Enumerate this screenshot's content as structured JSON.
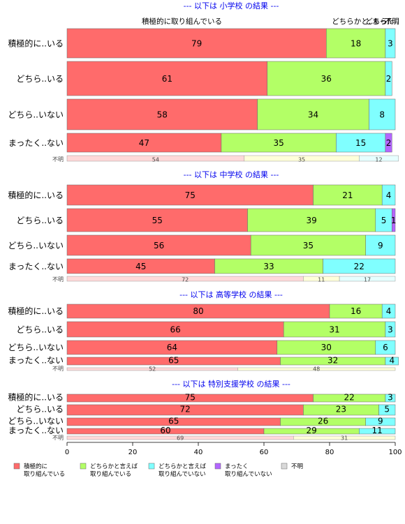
{
  "chart_data": {
    "type": "bar",
    "orientation": "horizontal",
    "stacked": true,
    "xlim": [
      0,
      100
    ],
    "xticks": [
      0,
      20,
      40,
      60,
      80,
      100
    ],
    "colors": [
      "#ff6b6b",
      "#b3ff66",
      "#80ffff",
      "#b366ff",
      "#d9d9d9"
    ],
    "legend": {
      "placement": "bottom",
      "items": [
        {
          "label_lines": [
            "積極的に",
            "取り組んでいる"
          ]
        },
        {
          "label_lines": [
            "どちらかと言えば",
            "取り組んでいる"
          ]
        },
        {
          "label_lines": [
            "どちらかと言えば",
            "取り組んでいない"
          ]
        },
        {
          "label_lines": [
            "まったく",
            "取り組んでいない"
          ]
        },
        {
          "label_lines": [
            "不明"
          ]
        }
      ]
    },
    "header_labels": [
      {
        "text": "積極的に取り組んでいる",
        "at": 35
      },
      {
        "text": "どちらかと..",
        "at": 87
      },
      {
        "text": "どちら..",
        "at": 95
      },
      {
        "text": "まった..",
        "at": 97
      },
      {
        "text": "不明",
        "at": 99
      }
    ],
    "sections": [
      {
        "title": "--- 以下は 小学校 の結果 ---",
        "rows": [
          {
            "category": "積極的に..いる",
            "values": [
              79,
              18,
              3,
              0
            ]
          },
          {
            "category": "どちら..いる",
            "values": [
              61,
              36,
              2,
              0
            ]
          },
          {
            "category": "どちら..いない",
            "values": [
              58,
              34,
              8,
              0
            ]
          },
          {
            "category": "まったく..ない",
            "values": [
              47,
              35,
              15,
              2
            ]
          }
        ],
        "unknown": {
          "label": "不明",
          "values": [
            54,
            35,
            12
          ]
        }
      },
      {
        "title": "--- 以下は 中学校 の結果 ---",
        "rows": [
          {
            "category": "積極的に..いる",
            "values": [
              75,
              21,
              4,
              0
            ]
          },
          {
            "category": "どちら..いる",
            "values": [
              55,
              39,
              5,
              1
            ]
          },
          {
            "category": "どちら..いない",
            "values": [
              56,
              35,
              9,
              0
            ]
          },
          {
            "category": "まったく..ない",
            "values": [
              45,
              33,
              22,
              0
            ]
          }
        ],
        "unknown": {
          "label": "不明",
          "values": [
            72,
            11,
            17
          ]
        }
      },
      {
        "title": "--- 以下は 高等学校 の結果 ---",
        "rows": [
          {
            "category": "積極的に..いる",
            "values": [
              80,
              16,
              4,
              0
            ]
          },
          {
            "category": "どちら..いる",
            "values": [
              66,
              31,
              3,
              0
            ]
          },
          {
            "category": "どちら..いない",
            "values": [
              64,
              30,
              6,
              0
            ]
          },
          {
            "category": "まったく..ない",
            "values": [
              65,
              32,
              4,
              0
            ]
          }
        ],
        "unknown": {
          "label": "不明",
          "values": [
            52,
            48,
            0
          ]
        }
      },
      {
        "title": "--- 以下は 特別支援学校 の結果 ---",
        "rows": [
          {
            "category": "積極的に..いる",
            "values": [
              75,
              22,
              3,
              0
            ]
          },
          {
            "category": "どちら..いる",
            "values": [
              72,
              23,
              5,
              0
            ]
          },
          {
            "category": "どちら..いない",
            "values": [
              65,
              26,
              9,
              0
            ]
          },
          {
            "category": "まったく..ない",
            "values": [
              60,
              29,
              11,
              0
            ]
          }
        ],
        "unknown": {
          "label": "不明",
          "values": [
            69,
            31,
            0
          ]
        }
      }
    ]
  }
}
